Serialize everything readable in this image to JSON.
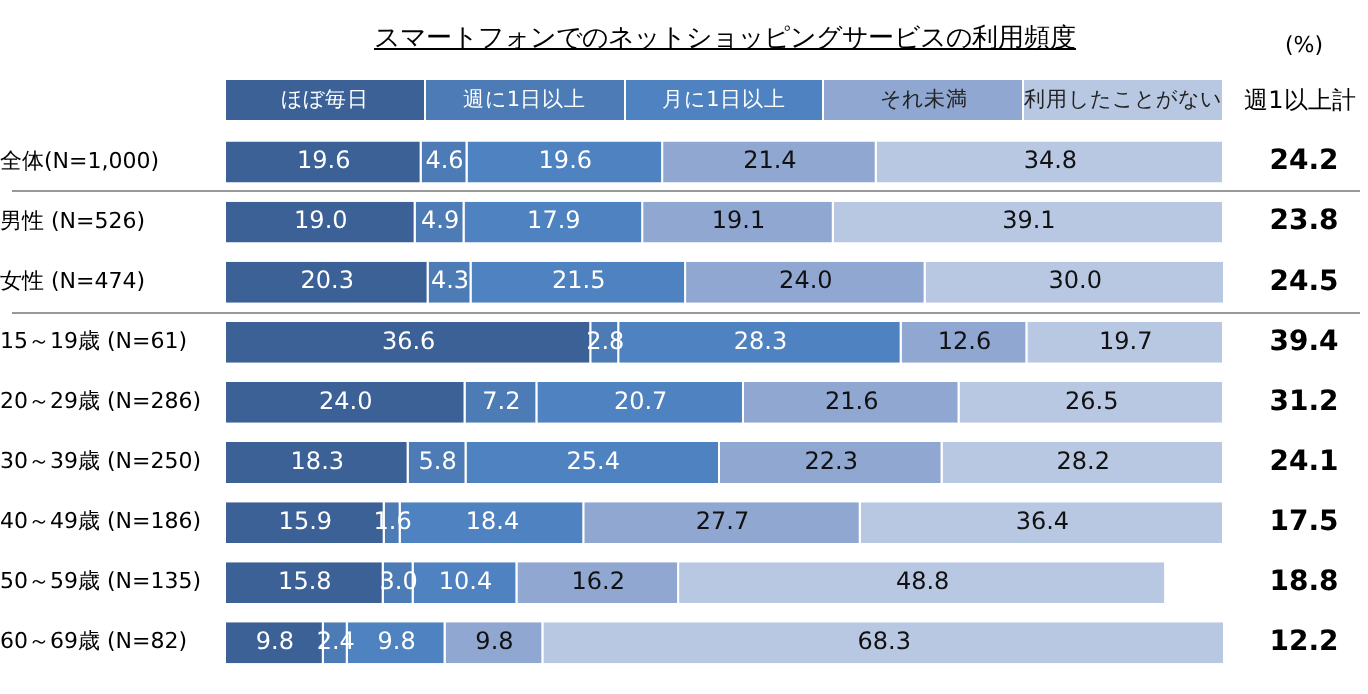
{
  "chart_data": {
    "type": "bar",
    "orientation": "horizontal",
    "stacked": true,
    "title": "スマートフォンでのネットショッピングサービスの利用頻度",
    "categories": [
      "全体(N=1,000)",
      "男性 (N=526)",
      "女性 (N=474)",
      "15～19歳 (N=61)",
      "20～29歳 (N=286)",
      "30～39歳 (N=250)",
      "40～49歳 (N=186)",
      "50～59歳 (N=135)",
      "60～69歳 (N=82)"
    ],
    "series": [
      {
        "name": "ほぼ毎日",
        "color": "#3b6196",
        "values": [
          19.6,
          19.0,
          20.3,
          36.6,
          24.0,
          18.3,
          15.9,
          15.8,
          9.8
        ],
        "value_labels": [
          "19.6",
          "19.0",
          "20.3",
          "36.6",
          "24.0",
          "18.3",
          "15.9",
          "15.8",
          "9.8"
        ]
      },
      {
        "name": "週に1日以上",
        "color": "#4d7bb5",
        "values": [
          4.6,
          4.9,
          4.3,
          2.8,
          7.2,
          5.8,
          1.6,
          3.0,
          2.4
        ],
        "value_labels": [
          "4.6",
          "4.9",
          "4.3",
          "2.8",
          "7.2",
          "5.8",
          "1.6",
          "3.0",
          "2.4"
        ]
      },
      {
        "name": "月に1日以上",
        "color": "#4f82c0",
        "values": [
          19.6,
          17.9,
          21.5,
          28.3,
          20.7,
          25.4,
          18.4,
          10.4,
          9.8
        ],
        "value_labels": [
          "19.6",
          "17.9",
          "21.5",
          "28.3",
          "20.7",
          "25.4",
          "18.4",
          "10.4",
          "9.8"
        ]
      },
      {
        "name": "それ未満",
        "color": "#8fa7d1",
        "values": [
          21.4,
          19.1,
          24.0,
          12.6,
          21.6,
          22.3,
          27.7,
          16.2,
          9.8
        ],
        "value_labels": [
          "21.4",
          "19.1",
          "24.0",
          "12.6",
          "21.6",
          "22.3",
          "27.7",
          "16.2",
          "9.8"
        ]
      },
      {
        "name": "利用したことがない",
        "color": "#b9c8e2",
        "values": [
          34.8,
          39.1,
          30.0,
          19.7,
          26.5,
          28.2,
          36.4,
          48.8,
          68.3
        ],
        "value_labels": [
          "34.8",
          "39.1",
          "30.0",
          "19.7",
          "26.5",
          "28.2",
          "36.4",
          "48.8",
          "68.3"
        ]
      }
    ],
    "xlim": [
      0,
      100
    ],
    "tick_labels": "y",
    "legend": "top",
    "annotations": [
      "(%)",
      "週1以上計",
      "24.2",
      "23.8",
      "24.5",
      "39.4",
      "31.2",
      "24.1",
      "17.5",
      "18.8",
      "12.2"
    ]
  }
}
